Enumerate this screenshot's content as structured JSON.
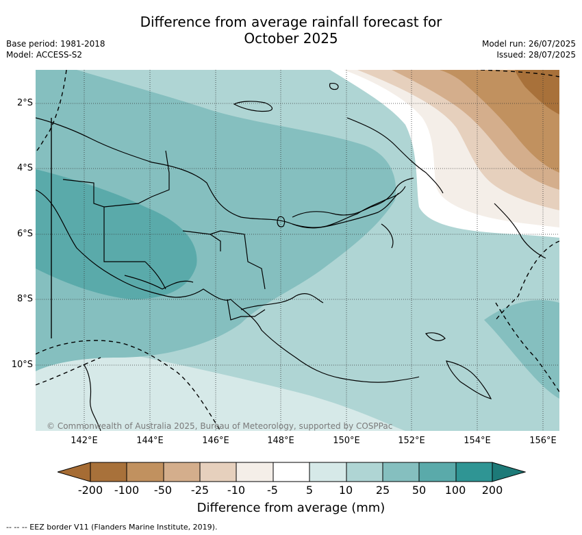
{
  "header": {
    "title_line1": "Difference from average rainfall forecast for",
    "title_line2": "October 2025",
    "base_period": "Base period: 1981-2018",
    "model": "Model: ACCESS-S2",
    "model_run": "Model run: 26/07/2025",
    "issued": "Issued: 28/07/2025"
  },
  "axes": {
    "lat_labels": [
      "2°S",
      "4°S",
      "6°S",
      "8°S",
      "10°S"
    ],
    "lon_labels": [
      "142°E",
      "144°E",
      "146°E",
      "148°E",
      "150°E",
      "152°E",
      "154°E",
      "156°E"
    ]
  },
  "map": {
    "copyright": "© Commonwealth of Australia 2025, Bureau of Meteorology, supported by COSPPac",
    "dominant_signal": "wetter than average over most of Papua New Guinea, drier than average to the north-east"
  },
  "legend": {
    "title": "Difference from average (mm)",
    "ticks": [
      "-200",
      "-100",
      "-50",
      "-25",
      "-10",
      "-5",
      "5",
      "10",
      "25",
      "50",
      "100",
      "200"
    ],
    "colors": [
      "#a66c34",
      "#a8713a",
      "#c1915f",
      "#d4ae8c",
      "#e6d0bd",
      "#f4eee8",
      "#ffffff",
      "#d6e9e8",
      "#afd5d4",
      "#85bfbf",
      "#5aaaaa",
      "#2f9594",
      "#1d7a78"
    ]
  },
  "footer": {
    "eez_note": "--  --  -- EEZ border V11 (Flanders Marine Institute, 2019)."
  }
}
